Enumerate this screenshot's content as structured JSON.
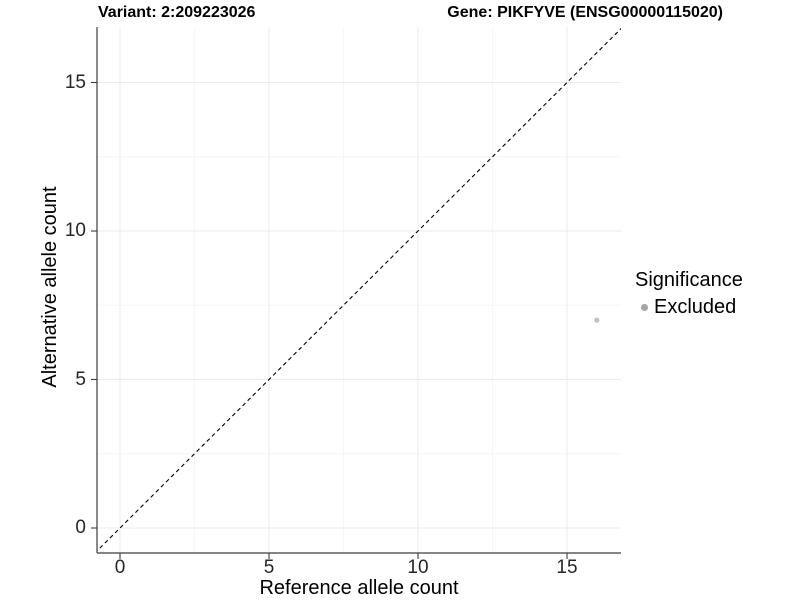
{
  "header": {
    "variant_title": "Variant: 2:209223026",
    "gene_title": "Gene: PIKFYVE (ENSG00000115020)"
  },
  "axes": {
    "x_label": "Reference allele count",
    "y_label": "Alternative allele count"
  },
  "legend": {
    "title": "Significance",
    "items": [
      {
        "label": "Excluded",
        "color": "#a6a6a6"
      }
    ]
  },
  "chart_data": {
    "type": "scatter",
    "title": "Variant: 2:209223026   Gene: PIKFYVE (ENSG00000115020)",
    "xlabel": "Reference allele count",
    "ylabel": "Alternative allele count",
    "xlim": [
      -0.8,
      16.9
    ],
    "ylim": [
      -0.8,
      16.9
    ],
    "x_major_ticks": [
      0,
      5,
      10,
      15
    ],
    "y_major_ticks": [
      0,
      5,
      10,
      15
    ],
    "x_minor_ticks": [
      2.5,
      7.5,
      12.5
    ],
    "y_minor_ticks": [
      2.5,
      7.5,
      12.5
    ],
    "grid": true,
    "legend_position": "right",
    "series": [
      {
        "name": "Excluded",
        "color": "#c1c1c1",
        "points": [
          {
            "x": 16,
            "y": 7
          }
        ]
      }
    ],
    "reference_line": {
      "kind": "identity y=x",
      "style": "dashed",
      "color": "#000000",
      "from": [
        -0.85,
        -0.85
      ],
      "to": [
        17,
        17
      ]
    },
    "style": {
      "grid_major_color": "#ebebeb",
      "grid_minor_color": "#f6f6f6",
      "axis_color": "#3c3c3c",
      "tick_label_color": "#262626",
      "background": "#ffffff"
    }
  }
}
